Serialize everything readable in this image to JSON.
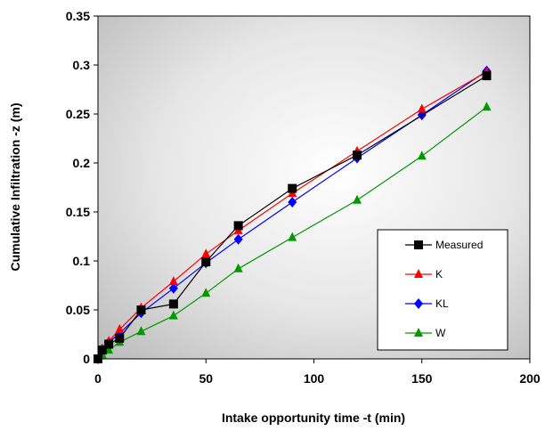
{
  "chart_data": {
    "type": "line",
    "xlabel": "Intake opportunity time -t (min)",
    "ylabel": "Cumulative Infiltration -z (m)",
    "xlim": [
      0,
      200
    ],
    "ylim": [
      0,
      0.35
    ],
    "xticks": [
      "0",
      "50",
      "100",
      "150",
      "200"
    ],
    "yticks": [
      "0",
      "0.05",
      "0.1",
      "0.15",
      "0.2",
      "0.25",
      "0.3",
      "0.35"
    ],
    "grid": false,
    "legend_position": "bottom-right",
    "plot_background": "gradient-grey",
    "series": [
      {
        "name": "Measured",
        "color": "#000000",
        "marker": "square",
        "x": [
          0,
          2,
          5,
          10,
          20,
          35,
          50,
          65,
          90,
          120,
          180
        ],
        "y": [
          0,
          0.009,
          0.015,
          0.021,
          0.05,
          0.056,
          0.099,
          0.136,
          0.174,
          0.208,
          0.289
        ]
      },
      {
        "name": "K",
        "color": "#ff0000",
        "marker": "triangle",
        "x": [
          0,
          2,
          5,
          10,
          20,
          35,
          50,
          65,
          90,
          120,
          150,
          180
        ],
        "y": [
          0,
          0.01,
          0.018,
          0.03,
          0.052,
          0.079,
          0.107,
          0.131,
          0.169,
          0.212,
          0.255,
          0.293
        ]
      },
      {
        "name": "KL",
        "color": "#0000ff",
        "marker": "diamond",
        "x": [
          0,
          2,
          5,
          10,
          20,
          35,
          50,
          65,
          90,
          120,
          150,
          180
        ],
        "y": [
          0,
          0.01,
          0.017,
          0.026,
          0.047,
          0.072,
          0.098,
          0.122,
          0.16,
          0.205,
          0.249,
          0.294
        ]
      },
      {
        "name": "W",
        "color": "#009900",
        "marker": "triangle",
        "x": [
          0,
          2,
          5,
          10,
          20,
          35,
          50,
          65,
          90,
          120,
          150,
          180
        ],
        "y": [
          0,
          0.004,
          0.009,
          0.017,
          0.028,
          0.044,
          0.067,
          0.092,
          0.124,
          0.162,
          0.207,
          0.257
        ]
      }
    ]
  }
}
